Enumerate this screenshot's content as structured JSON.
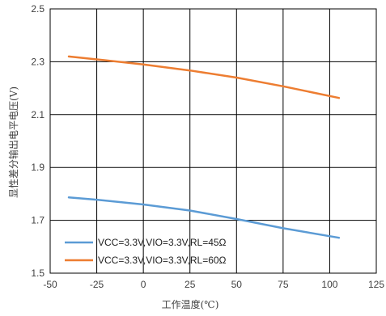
{
  "chart_data": {
    "type": "line",
    "title": "",
    "xlabel": "工作温度(℃)",
    "ylabel": "显性差分输出电平电压(V)",
    "xlim": [
      -50,
      125
    ],
    "ylim": [
      1.5,
      2.5
    ],
    "xticks": [
      -50,
      -25,
      0,
      25,
      50,
      75,
      100,
      125
    ],
    "xtick_labels": [
      "-50",
      "-25",
      "0",
      "25",
      "50",
      "75",
      "100",
      "125"
    ],
    "yticks": [
      1.5,
      1.7,
      1.9,
      2.1,
      2.3,
      2.5
    ],
    "ytick_labels": [
      "1.5",
      "1.7",
      "1.9",
      "2.1",
      "2.3",
      "2.5"
    ],
    "grid": true,
    "legend_position": "bottom-left",
    "series": [
      {
        "name": "VCC=3.3V,VIO=3.3V,RL=45Ω",
        "color": "#5B9BD5",
        "x": [
          -40,
          -25,
          0,
          25,
          50,
          75,
          105
        ],
        "y": [
          1.787,
          1.778,
          1.76,
          1.737,
          1.705,
          1.67,
          1.634
        ]
      },
      {
        "name": "VCC=3.3V,VIO=3.3V,RL=60Ω",
        "color": "#ED7D31",
        "x": [
          -40,
          -25,
          0,
          25,
          50,
          75,
          105
        ],
        "y": [
          2.32,
          2.309,
          2.29,
          2.267,
          2.24,
          2.207,
          2.163
        ]
      }
    ]
  }
}
